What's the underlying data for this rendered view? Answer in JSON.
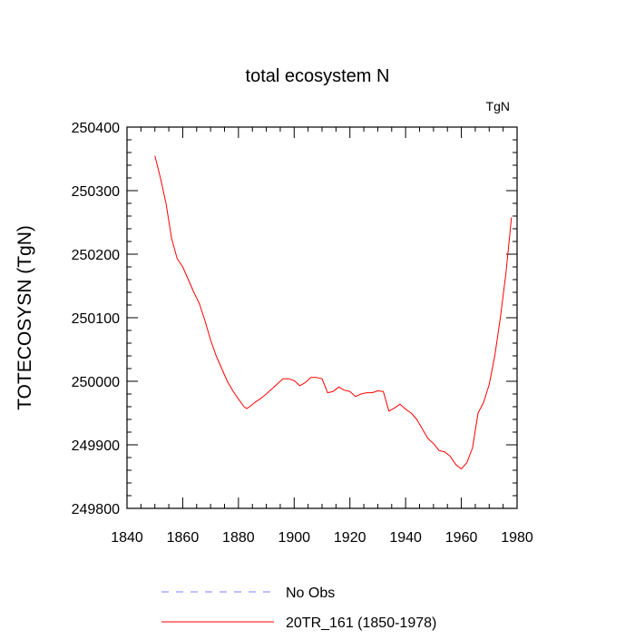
{
  "chart_data": {
    "type": "line",
    "title": "total ecosystem N",
    "units_label": "TgN",
    "xlabel": "",
    "ylabel": "TOTECOSYSN  (TgN)",
    "xlim": [
      1840,
      1980
    ],
    "ylim": [
      249800,
      250400
    ],
    "x_ticks": [
      1840,
      1860,
      1880,
      1900,
      1920,
      1940,
      1960,
      1980
    ],
    "y_ticks": [
      249800,
      249900,
      250000,
      250100,
      250200,
      250300,
      250400
    ],
    "x_tick_labels": [
      "1840",
      "1860",
      "1880",
      "1900",
      "1920",
      "1940",
      "1960",
      "1980"
    ],
    "y_tick_labels": [
      "249800",
      "249900",
      "250000",
      "250100",
      "250200",
      "250300",
      "250400"
    ],
    "grid": false,
    "legend_position": "bottom",
    "legend": [
      {
        "label": "No Obs",
        "color": "#7f7fff",
        "style": "dashed"
      },
      {
        "label": "20TR_161 (1850-1978)",
        "color": "#ff0000",
        "style": "solid"
      }
    ],
    "series": [
      {
        "name": "20TR_161 (1850-1978)",
        "color": "#ff0000",
        "x": [
          1850,
          1852,
          1854,
          1856,
          1858,
          1860,
          1862,
          1864,
          1866,
          1868,
          1870,
          1872,
          1874,
          1876,
          1878,
          1880,
          1882,
          1883,
          1884,
          1886,
          1888,
          1890,
          1892,
          1894,
          1896,
          1898,
          1900,
          1902,
          1904,
          1906,
          1908,
          1910,
          1912,
          1914,
          1916,
          1918,
          1920,
          1922,
          1924,
          1926,
          1928,
          1930,
          1932,
          1934,
          1936,
          1938,
          1940,
          1942,
          1944,
          1946,
          1948,
          1950,
          1952,
          1954,
          1956,
          1958,
          1960,
          1962,
          1964,
          1966,
          1968,
          1970,
          1972,
          1974,
          1976,
          1978
        ],
        "values": [
          250355,
          250320,
          250280,
          250225,
          250193,
          250180,
          250160,
          250140,
          250122,
          250095,
          250065,
          250040,
          250020,
          250000,
          249985,
          249972,
          249960,
          249957,
          249960,
          249967,
          249973,
          249980,
          249988,
          249996,
          250004,
          250004,
          250001,
          249993,
          249998,
          250006,
          250006,
          250004,
          249982,
          249984,
          249991,
          249986,
          249984,
          249976,
          249980,
          249982,
          249982,
          249985,
          249984,
          249953,
          249958,
          249964,
          249956,
          249950,
          249940,
          249925,
          249910,
          249902,
          249891,
          249889,
          249882,
          249869,
          249862,
          249872,
          249895,
          249950,
          249967,
          249995,
          250040,
          250100,
          250170,
          250258
        ]
      }
    ]
  }
}
